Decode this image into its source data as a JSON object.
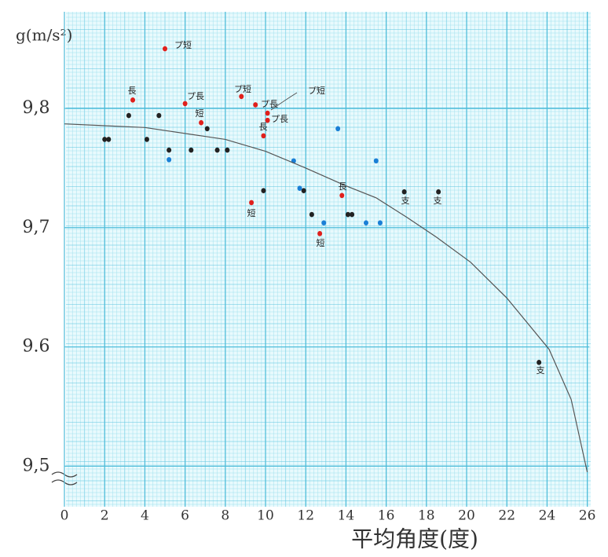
{
  "chart_data": {
    "type": "scatter",
    "ylabel": "g(m/s²)",
    "xlabel": "平均角度(度)",
    "xlim": [
      0,
      26.1
    ],
    "ylim": [
      9.466,
      9.881
    ],
    "xticks": [
      0,
      2,
      4,
      6,
      8,
      10,
      12,
      14,
      16,
      18,
      20,
      22,
      24,
      26
    ],
    "yticks": [
      {
        "value": 9.8,
        "label": "9,8"
      },
      {
        "value": 9.7,
        "label": "9,7"
      },
      {
        "value": 9.6,
        "label": "9.6"
      },
      {
        "value": 9.5,
        "label": "9,5"
      }
    ],
    "grid": true,
    "series": [
      {
        "color": "#222222",
        "mode": "markers",
        "x": [
          2.0,
          2.2,
          3.2,
          4.1,
          4.7,
          5.2,
          6.3,
          7.1,
          7.6,
          8.1,
          9.9,
          11.9,
          12.3,
          14.1,
          14.3,
          16.9,
          18.6,
          23.6
        ],
        "values": [
          9.774,
          9.774,
          9.794,
          9.774,
          9.794,
          9.765,
          9.765,
          9.783,
          9.765,
          9.765,
          9.731,
          9.731,
          9.711,
          9.711,
          9.711,
          9.73,
          9.73,
          9.587
        ]
      },
      {
        "color": "#e0201c",
        "mode": "markers",
        "x": [
          5.0,
          3.4,
          6.0,
          6.8,
          8.8,
          9.5,
          10.1,
          10.1,
          9.9,
          9.3,
          13.8,
          12.7
        ],
        "values": [
          9.85,
          9.807,
          9.804,
          9.788,
          9.81,
          9.803,
          9.796,
          9.79,
          9.777,
          9.721,
          9.727,
          9.695
        ]
      },
      {
        "color": "#1a7fd6",
        "mode": "markers",
        "x": [
          5.2,
          11.4,
          13.6,
          11.7,
          15.5,
          12.9,
          15.0,
          15.7
        ],
        "values": [
          9.757,
          9.756,
          9.783,
          9.733,
          9.756,
          9.704,
          9.704,
          9.704
        ]
      },
      {
        "color": "#555555",
        "mode": "line",
        "x": [
          0,
          4,
          8,
          10,
          12,
          14,
          15.5,
          17,
          18.5,
          20.2,
          22,
          24.1,
          25.2,
          26
        ],
        "values": [
          9.787,
          9.784,
          9.774,
          9.764,
          9.75,
          9.735,
          9.725,
          9.709,
          9.692,
          9.671,
          9.641,
          9.598,
          9.556,
          9.495
        ]
      }
    ],
    "annotations": [
      "プ短",
      "長",
      "プ長",
      "短",
      "プ短",
      "プ長",
      "プ長",
      "プ短",
      "長",
      "短",
      "長",
      "短",
      "支",
      "支",
      "支"
    ]
  }
}
